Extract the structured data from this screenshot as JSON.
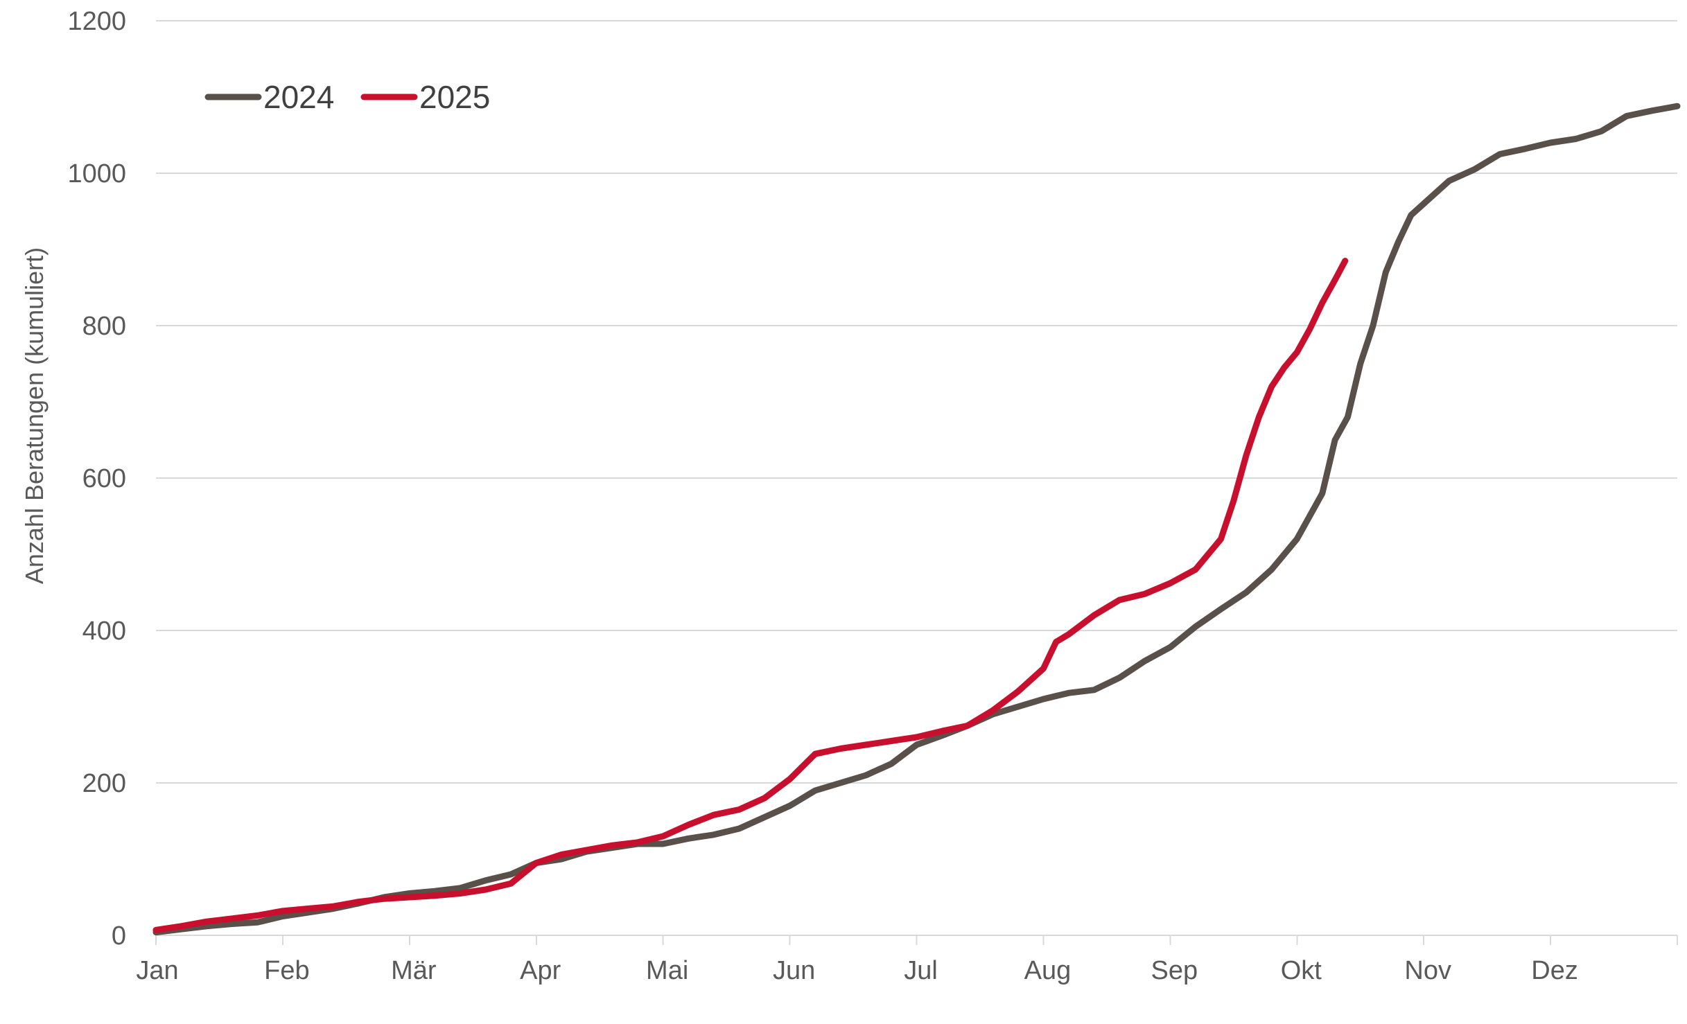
{
  "chart_data": {
    "type": "line",
    "title": "",
    "xlabel": "",
    "ylabel": "Anzahl Beratungen (kumuliert)",
    "ylim": [
      0,
      1200
    ],
    "yticks": [
      0,
      200,
      400,
      600,
      800,
      1000,
      1200
    ],
    "xlim": [
      0,
      12
    ],
    "x_tick_labels": [
      "Jan",
      "Feb",
      "Mär",
      "Apr",
      "Mai",
      "Jun",
      "Jul",
      "Aug",
      "Sep",
      "Okt",
      "Nov",
      "Dez"
    ],
    "x_unit": "month",
    "grid": "horizontal",
    "legend_position": "top-left",
    "series": [
      {
        "name": "2024",
        "color": "#595049",
        "points": [
          [
            0.0,
            4
          ],
          [
            0.2,
            8
          ],
          [
            0.4,
            12
          ],
          [
            0.6,
            15
          ],
          [
            0.8,
            17
          ],
          [
            1.0,
            25
          ],
          [
            1.2,
            30
          ],
          [
            1.4,
            35
          ],
          [
            1.6,
            42
          ],
          [
            1.8,
            50
          ],
          [
            2.0,
            55
          ],
          [
            2.2,
            58
          ],
          [
            2.4,
            62
          ],
          [
            2.6,
            72
          ],
          [
            2.8,
            80
          ],
          [
            3.0,
            95
          ],
          [
            3.2,
            100
          ],
          [
            3.4,
            110
          ],
          [
            3.6,
            115
          ],
          [
            3.8,
            120
          ],
          [
            4.0,
            120
          ],
          [
            4.2,
            127
          ],
          [
            4.4,
            132
          ],
          [
            4.6,
            140
          ],
          [
            4.8,
            155
          ],
          [
            5.0,
            170
          ],
          [
            5.2,
            190
          ],
          [
            5.4,
            200
          ],
          [
            5.6,
            210
          ],
          [
            5.8,
            225
          ],
          [
            6.0,
            250
          ],
          [
            6.2,
            262
          ],
          [
            6.4,
            275
          ],
          [
            6.6,
            290
          ],
          [
            6.8,
            300
          ],
          [
            7.0,
            310
          ],
          [
            7.2,
            318
          ],
          [
            7.4,
            322
          ],
          [
            7.6,
            338
          ],
          [
            7.8,
            360
          ],
          [
            8.0,
            378
          ],
          [
            8.2,
            405
          ],
          [
            8.4,
            428
          ],
          [
            8.6,
            450
          ],
          [
            8.8,
            480
          ],
          [
            9.0,
            520
          ],
          [
            9.2,
            580
          ],
          [
            9.3,
            650
          ],
          [
            9.4,
            680
          ],
          [
            9.5,
            750
          ],
          [
            9.6,
            800
          ],
          [
            9.7,
            870
          ],
          [
            9.8,
            910
          ],
          [
            9.9,
            945
          ],
          [
            10.0,
            960
          ],
          [
            10.2,
            990
          ],
          [
            10.4,
            1005
          ],
          [
            10.6,
            1025
          ],
          [
            10.8,
            1032
          ],
          [
            11.0,
            1040
          ],
          [
            11.2,
            1045
          ],
          [
            11.4,
            1055
          ],
          [
            11.6,
            1075
          ],
          [
            11.8,
            1082
          ],
          [
            12.0,
            1088
          ]
        ]
      },
      {
        "name": "2025",
        "color": "#c8102e",
        "points": [
          [
            0.0,
            7
          ],
          [
            0.2,
            12
          ],
          [
            0.4,
            18
          ],
          [
            0.6,
            22
          ],
          [
            0.8,
            26
          ],
          [
            1.0,
            32
          ],
          [
            1.2,
            35
          ],
          [
            1.4,
            38
          ],
          [
            1.6,
            44
          ],
          [
            1.8,
            48
          ],
          [
            2.0,
            50
          ],
          [
            2.2,
            52
          ],
          [
            2.4,
            55
          ],
          [
            2.6,
            60
          ],
          [
            2.8,
            68
          ],
          [
            3.0,
            95
          ],
          [
            3.2,
            106
          ],
          [
            3.4,
            112
          ],
          [
            3.6,
            118
          ],
          [
            3.8,
            122
          ],
          [
            4.0,
            130
          ],
          [
            4.2,
            145
          ],
          [
            4.4,
            158
          ],
          [
            4.6,
            165
          ],
          [
            4.8,
            180
          ],
          [
            5.0,
            205
          ],
          [
            5.2,
            238
          ],
          [
            5.4,
            245
          ],
          [
            5.6,
            250
          ],
          [
            5.8,
            255
          ],
          [
            6.0,
            260
          ],
          [
            6.2,
            268
          ],
          [
            6.4,
            275
          ],
          [
            6.6,
            295
          ],
          [
            6.8,
            320
          ],
          [
            7.0,
            350
          ],
          [
            7.1,
            385
          ],
          [
            7.2,
            395
          ],
          [
            7.4,
            420
          ],
          [
            7.6,
            440
          ],
          [
            7.8,
            448
          ],
          [
            8.0,
            462
          ],
          [
            8.2,
            480
          ],
          [
            8.4,
            520
          ],
          [
            8.5,
            570
          ],
          [
            8.6,
            630
          ],
          [
            8.7,
            680
          ],
          [
            8.8,
            720
          ],
          [
            8.9,
            745
          ],
          [
            9.0,
            765
          ],
          [
            9.1,
            795
          ],
          [
            9.2,
            830
          ],
          [
            9.3,
            860
          ],
          [
            9.38,
            885
          ]
        ]
      }
    ]
  }
}
